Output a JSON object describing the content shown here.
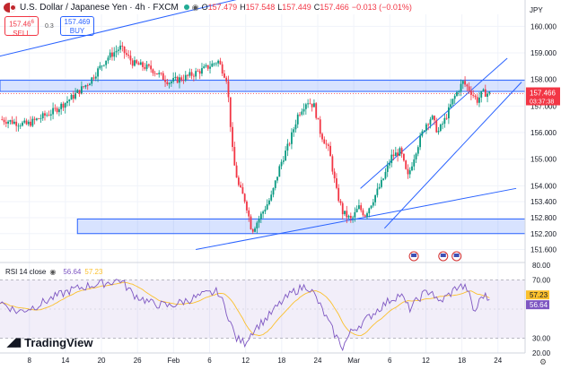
{
  "header": {
    "symbol_title": "U.S. Dollar / Japanese Yen · 4h · FXCM",
    "ohlc": {
      "o_label": "O",
      "o": "157.479",
      "h_label": "H",
      "h": "157.548",
      "l_label": "L",
      "l": "157.449",
      "c_label": "C",
      "c": "157.466",
      "change": "−0.013 (−0.01%)"
    },
    "sell": {
      "price": "157.46",
      "price_sup": "6",
      "label": "SELL"
    },
    "buy": {
      "price": "157.469",
      "label": "BUY"
    },
    "spread": "0.3",
    "currency": "JPY",
    "colors": {
      "up": "#089981",
      "down": "#f23645",
      "accent": "#2962ff"
    }
  },
  "logo": {
    "text": "TradingView",
    "icon": "tradingview-logo-icon"
  },
  "settings_icon": "gear-icon",
  "chart_data": [
    {
      "type": "candlestick",
      "title": "U.S. Dollar / Japanese Yen · 4h · FXCM",
      "ylim": [
        151.45,
        160.45
      ],
      "y_ticks": [
        160.0,
        159.0,
        158.0,
        157.0,
        156.0,
        155.0,
        154.0,
        153.4,
        152.8,
        152.2,
        151.6
      ],
      "x_ticks": [
        "8",
        "14",
        "20",
        "26",
        "Feb",
        "6",
        "12",
        "18",
        "24",
        "Mar",
        "6",
        "12",
        "18",
        "24"
      ],
      "last_price": {
        "value": "157.466",
        "countdown": "03:37:38"
      },
      "price_path": [
        [
          0,
          156.5
        ],
        [
          3,
          156.3
        ],
        [
          6,
          156.8
        ],
        [
          8,
          157.3
        ],
        [
          10,
          157.9
        ],
        [
          12,
          158.8
        ],
        [
          13.5,
          159.2
        ],
        [
          15,
          158.6
        ],
        [
          17,
          158.4
        ],
        [
          19,
          157.9
        ],
        [
          21,
          158.1
        ],
        [
          23,
          158.4
        ],
        [
          24.5,
          158.7
        ],
        [
          25.5,
          158.0
        ],
        [
          26.2,
          155.0
        ],
        [
          26.8,
          154.0
        ],
        [
          27.6,
          153.4
        ],
        [
          28.3,
          152.3
        ],
        [
          29.5,
          153.0
        ],
        [
          30.5,
          153.6
        ],
        [
          31.5,
          154.8
        ],
        [
          32.5,
          155.6
        ],
        [
          33.5,
          156.7
        ],
        [
          34.5,
          157.2
        ],
        [
          35.3,
          157.0
        ],
        [
          36,
          156.0
        ],
        [
          37,
          155.3
        ],
        [
          37.8,
          153.8
        ],
        [
          38.5,
          153.0
        ],
        [
          39.5,
          152.7
        ],
        [
          40.3,
          153.2
        ],
        [
          41,
          152.9
        ],
        [
          41.8,
          153.4
        ],
        [
          43,
          154.2
        ],
        [
          44,
          155.1
        ],
        [
          45,
          155.3
        ],
        [
          45.8,
          154.3
        ],
        [
          46.8,
          155.4
        ],
        [
          47.8,
          156.3
        ],
        [
          48.5,
          156.6
        ],
        [
          49.2,
          156.0
        ],
        [
          50,
          156.5
        ],
        [
          51,
          157.3
        ],
        [
          52,
          157.9
        ],
        [
          52.8,
          157.6
        ],
        [
          53.6,
          157.2
        ],
        [
          54.2,
          157.5
        ],
        [
          55,
          157.466
        ]
      ],
      "support_zone": [
        152.2,
        152.75
      ],
      "resistance_zone": [
        157.55,
        157.97
      ],
      "trendlines": [
        {
          "from": [
            -1,
            158.8
          ],
          "to": [
            39,
            162.0
          ]
        },
        {
          "from": [
            22,
            151.6
          ],
          "to": [
            58,
            153.9
          ]
        },
        {
          "from": [
            40.5,
            153.9
          ],
          "to": [
            57,
            158.8
          ]
        },
        {
          "from": [
            43.2,
            152.4
          ],
          "to": [
            58.6,
            157.9
          ]
        }
      ],
      "events_icon": "calendar-flag-icons"
    },
    {
      "type": "line",
      "title": "RSI 14 close",
      "series": [
        {
          "name": "RSI",
          "value": "56.64",
          "color": "#7e57c2"
        },
        {
          "name": "RSI-based MA",
          "value": "57.23",
          "color": "#fbc02d"
        }
      ],
      "ylim": [
        20,
        80
      ],
      "y_ticks": [
        80.0,
        70.0,
        30.0,
        20.0
      ],
      "bands": [
        30,
        70
      ],
      "rsi_path": [
        [
          0,
          55
        ],
        [
          2,
          48
        ],
        [
          4,
          52
        ],
        [
          6,
          58
        ],
        [
          8,
          63
        ],
        [
          10,
          66
        ],
        [
          12,
          68
        ],
        [
          13.5,
          70
        ],
        [
          15,
          60
        ],
        [
          17,
          54
        ],
        [
          19,
          52
        ],
        [
          21,
          56
        ],
        [
          23,
          60
        ],
        [
          24.5,
          62
        ],
        [
          25.5,
          48
        ],
        [
          26.5,
          30
        ],
        [
          27.5,
          27
        ],
        [
          28.5,
          36
        ],
        [
          30,
          44
        ],
        [
          31.5,
          54
        ],
        [
          33,
          62
        ],
        [
          34.5,
          66
        ],
        [
          35.3,
          60
        ],
        [
          36.5,
          46
        ],
        [
          37.5,
          34
        ],
        [
          38.5,
          24
        ],
        [
          39.5,
          35
        ],
        [
          41,
          42
        ],
        [
          42.5,
          50
        ],
        [
          44,
          57
        ],
        [
          45,
          60
        ],
        [
          46,
          50
        ],
        [
          47.5,
          60
        ],
        [
          48.5,
          63
        ],
        [
          49.2,
          54
        ],
        [
          50.5,
          60
        ],
        [
          51.5,
          66
        ],
        [
          52.5,
          64
        ],
        [
          53.3,
          47
        ],
        [
          54.2,
          60
        ],
        [
          55,
          56.6
        ]
      ]
    }
  ]
}
